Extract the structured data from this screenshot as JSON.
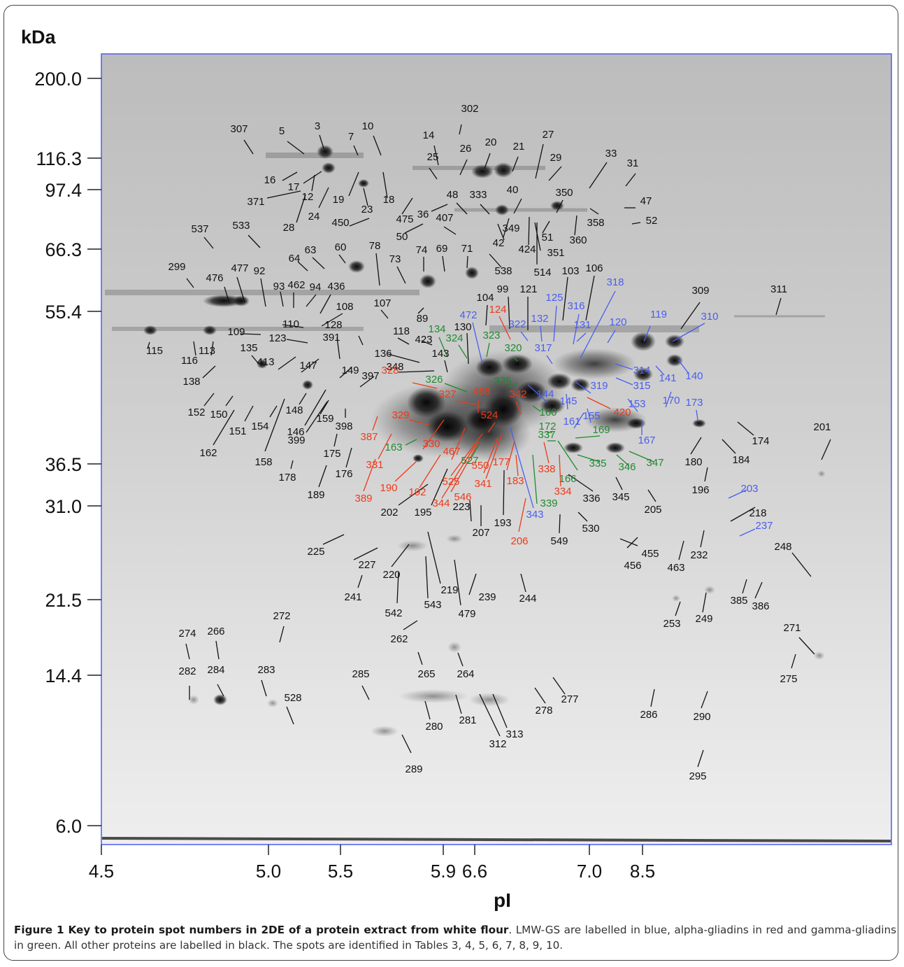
{
  "figure": {
    "y_axis_title": "kDa",
    "x_axis_title": "pI",
    "mw_ticks": [
      "200.0",
      "116.3",
      "97.4",
      "66.3",
      "55.4",
      "36.5",
      "31.0",
      "21.5",
      "14.4",
      "6.0"
    ],
    "pi_ticks": [
      "4.5",
      "5.0",
      "5.5",
      "5.9",
      "6.6",
      "7.0",
      "8.5"
    ],
    "label_colors": {
      "lmw_gs": "#4a5ef0",
      "alpha": "#ee3a1a",
      "gamma": "#1f8a2e",
      "other": "#111111"
    },
    "spot_labels": [
      {
        "t": "302",
        "c": "other"
      },
      {
        "t": "307",
        "c": "other"
      },
      {
        "t": "5",
        "c": "other"
      },
      {
        "t": "3",
        "c": "other"
      },
      {
        "t": "7",
        "c": "other"
      },
      {
        "t": "10",
        "c": "other"
      },
      {
        "t": "14",
        "c": "other"
      },
      {
        "t": "26",
        "c": "other"
      },
      {
        "t": "20",
        "c": "other"
      },
      {
        "t": "21",
        "c": "other"
      },
      {
        "t": "27",
        "c": "other"
      },
      {
        "t": "25",
        "c": "other"
      },
      {
        "t": "29",
        "c": "other"
      },
      {
        "t": "33",
        "c": "other"
      },
      {
        "t": "31",
        "c": "other"
      },
      {
        "t": "16",
        "c": "other"
      },
      {
        "t": "17",
        "c": "other"
      },
      {
        "t": "12",
        "c": "other"
      },
      {
        "t": "19",
        "c": "other"
      },
      {
        "t": "18",
        "c": "other"
      },
      {
        "t": "371",
        "c": "other"
      },
      {
        "t": "24",
        "c": "other"
      },
      {
        "t": "23",
        "c": "other"
      },
      {
        "t": "28",
        "c": "other"
      },
      {
        "t": "450",
        "c": "other"
      },
      {
        "t": "48",
        "c": "other"
      },
      {
        "t": "333",
        "c": "other"
      },
      {
        "t": "40",
        "c": "other"
      },
      {
        "t": "350",
        "c": "other"
      },
      {
        "t": "47",
        "c": "other"
      },
      {
        "t": "475",
        "c": "other"
      },
      {
        "t": "36",
        "c": "other"
      },
      {
        "t": "407",
        "c": "other"
      },
      {
        "t": "50",
        "c": "other"
      },
      {
        "t": "358",
        "c": "other"
      },
      {
        "t": "52",
        "c": "other"
      },
      {
        "t": "537",
        "c": "other"
      },
      {
        "t": "533",
        "c": "other"
      },
      {
        "t": "349",
        "c": "other"
      },
      {
        "t": "51",
        "c": "other"
      },
      {
        "t": "360",
        "c": "other"
      },
      {
        "t": "42",
        "c": "other"
      },
      {
        "t": "424",
        "c": "other"
      },
      {
        "t": "351",
        "c": "other"
      },
      {
        "t": "66.3_",
        "c": "skip"
      },
      {
        "t": "64",
        "c": "other"
      },
      {
        "t": "63",
        "c": "other"
      },
      {
        "t": "60",
        "c": "other"
      },
      {
        "t": "78",
        "c": "other"
      },
      {
        "t": "74",
        "c": "other"
      },
      {
        "t": "69",
        "c": "other"
      },
      {
        "t": "71",
        "c": "other"
      },
      {
        "t": "73",
        "c": "other"
      },
      {
        "t": "538",
        "c": "other"
      },
      {
        "t": "514",
        "c": "other"
      },
      {
        "t": "103",
        "c": "other"
      },
      {
        "t": "106",
        "c": "other"
      },
      {
        "t": "299",
        "c": "other"
      },
      {
        "t": "476",
        "c": "other"
      },
      {
        "t": "477",
        "c": "other"
      },
      {
        "t": "92",
        "c": "other"
      },
      {
        "t": "93",
        "c": "other"
      },
      {
        "t": "462",
        "c": "other"
      },
      {
        "t": "94",
        "c": "other"
      },
      {
        "t": "436",
        "c": "other"
      },
      {
        "t": "107",
        "c": "other"
      },
      {
        "t": "99",
        "c": "other"
      },
      {
        "t": "121",
        "c": "other"
      },
      {
        "t": "104",
        "c": "other"
      },
      {
        "t": "309",
        "c": "other"
      },
      {
        "t": "311",
        "c": "other"
      },
      {
        "t": "89",
        "c": "other"
      },
      {
        "t": "108",
        "c": "other"
      },
      {
        "t": "110",
        "c": "other"
      },
      {
        "t": "109",
        "c": "other"
      },
      {
        "t": "123",
        "c": "other"
      },
      {
        "t": "128",
        "c": "other"
      },
      {
        "t": "118",
        "c": "other"
      },
      {
        "t": "130",
        "c": "other"
      },
      {
        "t": "423",
        "c": "other"
      },
      {
        "t": "115",
        "c": "other"
      },
      {
        "t": "116",
        "c": "other"
      },
      {
        "t": "113",
        "c": "other"
      },
      {
        "t": "135",
        "c": "other"
      },
      {
        "t": "391",
        "c": "other"
      },
      {
        "t": "136",
        "c": "other"
      },
      {
        "t": "143",
        "c": "other"
      },
      {
        "t": "138",
        "c": "other"
      },
      {
        "t": "413",
        "c": "other"
      },
      {
        "t": "147",
        "c": "other"
      },
      {
        "t": "149",
        "c": "other"
      },
      {
        "t": "397",
        "c": "other"
      },
      {
        "t": "348",
        "c": "other"
      },
      {
        "t": "152",
        "c": "other"
      },
      {
        "t": "150",
        "c": "other"
      },
      {
        "t": "148",
        "c": "other"
      },
      {
        "t": "159",
        "c": "other"
      },
      {
        "t": "151",
        "c": "other"
      },
      {
        "t": "154",
        "c": "other"
      },
      {
        "t": "146",
        "c": "other"
      },
      {
        "t": "398",
        "c": "other"
      },
      {
        "t": "399",
        "c": "other"
      },
      {
        "t": "162",
        "c": "other"
      },
      {
        "t": "158",
        "c": "other"
      },
      {
        "t": "175",
        "c": "other"
      },
      {
        "t": "176",
        "c": "other"
      },
      {
        "t": "178",
        "c": "other"
      },
      {
        "t": "189",
        "c": "other"
      },
      {
        "t": "174",
        "c": "other"
      },
      {
        "t": "201",
        "c": "other"
      },
      {
        "t": "180",
        "c": "other"
      },
      {
        "t": "184",
        "c": "other"
      },
      {
        "t": "196",
        "c": "other"
      },
      {
        "t": "345",
        "c": "other"
      },
      {
        "t": "205",
        "c": "other"
      },
      {
        "t": "336",
        "c": "other"
      },
      {
        "t": "218",
        "c": "other"
      },
      {
        "t": "202",
        "c": "other"
      },
      {
        "t": "195",
        "c": "other"
      },
      {
        "t": "223",
        "c": "other"
      },
      {
        "t": "193",
        "c": "other"
      },
      {
        "t": "207",
        "c": "other"
      },
      {
        "t": "530",
        "c": "other"
      },
      {
        "t": "549",
        "c": "other"
      },
      {
        "t": "455",
        "c": "other"
      },
      {
        "t": "456",
        "c": "other"
      },
      {
        "t": "463",
        "c": "other"
      },
      {
        "t": "232",
        "c": "other"
      },
      {
        "t": "248",
        "c": "other"
      },
      {
        "t": "225",
        "c": "other"
      },
      {
        "t": "227",
        "c": "other"
      },
      {
        "t": "220",
        "c": "other"
      },
      {
        "t": "241",
        "c": "other"
      },
      {
        "t": "219",
        "c": "other"
      },
      {
        "t": "239",
        "c": "other"
      },
      {
        "t": "244",
        "c": "other"
      },
      {
        "t": "542",
        "c": "other"
      },
      {
        "t": "543",
        "c": "other"
      },
      {
        "t": "479",
        "c": "other"
      },
      {
        "t": "385",
        "c": "other"
      },
      {
        "t": "386",
        "c": "other"
      },
      {
        "t": "253",
        "c": "other"
      },
      {
        "t": "249",
        "c": "other"
      },
      {
        "t": "262",
        "c": "other"
      },
      {
        "t": "272",
        "c": "other"
      },
      {
        "t": "274",
        "c": "other"
      },
      {
        "t": "266",
        "c": "other"
      },
      {
        "t": "271",
        "c": "other"
      },
      {
        "t": "275",
        "c": "other"
      },
      {
        "t": "265",
        "c": "other"
      },
      {
        "t": "264",
        "c": "other"
      },
      {
        "t": "282",
        "c": "other"
      },
      {
        "t": "284",
        "c": "other"
      },
      {
        "t": "283",
        "c": "other"
      },
      {
        "t": "528",
        "c": "other"
      },
      {
        "t": "285",
        "c": "other"
      },
      {
        "t": "278",
        "c": "other"
      },
      {
        "t": "277",
        "c": "other"
      },
      {
        "t": "286",
        "c": "other"
      },
      {
        "t": "290",
        "c": "other"
      },
      {
        "t": "280",
        "c": "other"
      },
      {
        "t": "281",
        "c": "other"
      },
      {
        "t": "312",
        "c": "other"
      },
      {
        "t": "313",
        "c": "other"
      },
      {
        "t": "289",
        "c": "other"
      },
      {
        "t": "295",
        "c": "other"
      },
      {
        "t": "318",
        "c": "lmw_gs"
      },
      {
        "t": "125",
        "c": "lmw_gs"
      },
      {
        "t": "316",
        "c": "lmw_gs"
      },
      {
        "t": "472",
        "c": "lmw_gs"
      },
      {
        "t": "322",
        "c": "lmw_gs"
      },
      {
        "t": "132",
        "c": "lmw_gs"
      },
      {
        "t": "131",
        "c": "lmw_gs"
      },
      {
        "t": "120",
        "c": "lmw_gs"
      },
      {
        "t": "119",
        "c": "lmw_gs"
      },
      {
        "t": "310",
        "c": "lmw_gs"
      },
      {
        "t": "317",
        "c": "lmw_gs"
      },
      {
        "t": "314",
        "c": "lmw_gs"
      },
      {
        "t": "315",
        "c": "lmw_gs"
      },
      {
        "t": "141",
        "c": "lmw_gs"
      },
      {
        "t": "140",
        "c": "lmw_gs"
      },
      {
        "t": "144",
        "c": "lmw_gs"
      },
      {
        "t": "145",
        "c": "lmw_gs"
      },
      {
        "t": "319",
        "c": "lmw_gs"
      },
      {
        "t": "153",
        "c": "lmw_gs"
      },
      {
        "t": "170",
        "c": "lmw_gs"
      },
      {
        "t": "173",
        "c": "lmw_gs"
      },
      {
        "t": "161",
        "c": "lmw_gs"
      },
      {
        "t": "155",
        "c": "lmw_gs"
      },
      {
        "t": "167",
        "c": "lmw_gs"
      },
      {
        "t": "203",
        "c": "lmw_gs"
      },
      {
        "t": "237",
        "c": "lmw_gs"
      },
      {
        "t": "343",
        "c": "lmw_gs"
      },
      {
        "t": "124",
        "c": "alpha"
      },
      {
        "t": "328",
        "c": "alpha"
      },
      {
        "t": "327",
        "c": "alpha"
      },
      {
        "t": "468",
        "c": "alpha"
      },
      {
        "t": "342",
        "c": "alpha"
      },
      {
        "t": "420",
        "c": "alpha"
      },
      {
        "t": "329",
        "c": "alpha"
      },
      {
        "t": "524",
        "c": "alpha"
      },
      {
        "t": "387",
        "c": "alpha"
      },
      {
        "t": "330",
        "c": "alpha"
      },
      {
        "t": "467",
        "c": "alpha"
      },
      {
        "t": "331",
        "c": "alpha"
      },
      {
        "t": "550",
        "c": "alpha"
      },
      {
        "t": "177",
        "c": "alpha"
      },
      {
        "t": "338",
        "c": "alpha"
      },
      {
        "t": "190",
        "c": "alpha"
      },
      {
        "t": "525",
        "c": "alpha"
      },
      {
        "t": "341",
        "c": "alpha"
      },
      {
        "t": "183",
        "c": "alpha"
      },
      {
        "t": "334",
        "c": "alpha"
      },
      {
        "t": "389",
        "c": "alpha"
      },
      {
        "t": "192",
        "c": "alpha"
      },
      {
        "t": "546",
        "c": "alpha"
      },
      {
        "t": "344",
        "c": "alpha"
      },
      {
        "t": "206",
        "c": "alpha"
      },
      {
        "t": "134",
        "c": "gamma"
      },
      {
        "t": "324",
        "c": "gamma"
      },
      {
        "t": "323",
        "c": "gamma"
      },
      {
        "t": "320",
        "c": "gamma"
      },
      {
        "t": "326",
        "c": "gamma"
      },
      {
        "t": "325",
        "c": "gamma"
      },
      {
        "t": "160",
        "c": "gamma"
      },
      {
        "t": "172",
        "c": "gamma"
      },
      {
        "t": "337",
        "c": "gamma"
      },
      {
        "t": "169",
        "c": "gamma"
      },
      {
        "t": "163",
        "c": "gamma"
      },
      {
        "t": "527",
        "c": "gamma"
      },
      {
        "t": "335",
        "c": "gamma"
      },
      {
        "t": "346",
        "c": "gamma"
      },
      {
        "t": "347",
        "c": "gamma"
      },
      {
        "t": "166",
        "c": "gamma"
      },
      {
        "t": "339",
        "c": "gamma"
      }
    ]
  },
  "caption": {
    "bold": "Figure 1 Key to protein spot numbers in 2DE of a protein extract from white flour",
    "text": ". LMW-GS are labelled in blue, alpha-gliadins in red and gamma-gliadins in green. All other proteins are labelled in black. The spots are identified in Tables 3, 4, 5, 6, 7, 8, 9, 10."
  }
}
